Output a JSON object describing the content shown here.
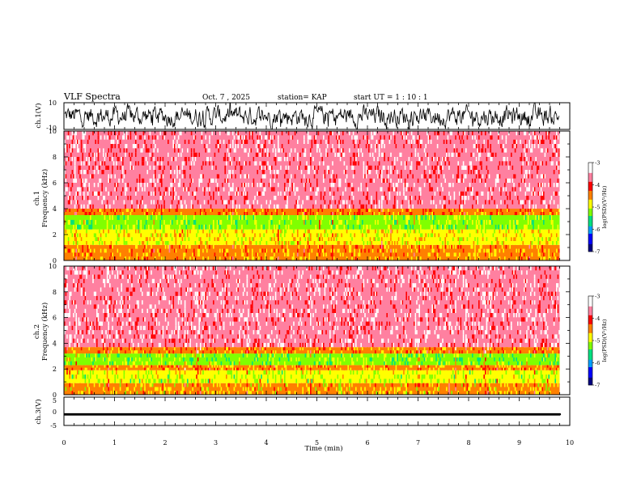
{
  "header": {
    "title": "VLF Spectra",
    "date": "Oct. 7 , 2025",
    "station": "station= KAP",
    "start": "start  UT =  1 : 10 : 1"
  },
  "colorbar": {
    "label": "log(PSD)(V²/Hz)",
    "ticks": [
      "-3",
      "-4",
      "-5",
      "-6",
      "-7"
    ],
    "range": [
      -7,
      -3
    ],
    "colors": [
      "#000080",
      "#0000ff",
      "#00a0ff",
      "#00e080",
      "#80ff00",
      "#ffff00",
      "#ff8000",
      "#ff0000",
      "#ff80a0",
      "#ffffff"
    ]
  },
  "chart_data": [
    {
      "type": "line",
      "name": "ch.1 waveform",
      "ylabel": "ch.1(V)",
      "ylim": [
        -10,
        10
      ],
      "y_ticks": [
        "10",
        "-10"
      ],
      "xlim": [
        0,
        10
      ],
      "trace_end_min": 9.8,
      "description_values": {
        "baseline": 0,
        "noise_amplitude": 7
      }
    },
    {
      "type": "heatmap",
      "name": "ch.1 spectrogram",
      "ylabel": "ch.1 Frequency (kHz)",
      "ylim": [
        0,
        10
      ],
      "y_ticks": [
        "10",
        "8",
        "6",
        "4",
        "2",
        "0"
      ],
      "xlim": [
        0,
        10
      ],
      "bands": [
        {
          "from_khz": 0,
          "to_khz": 1.2,
          "log_psd": -4.5
        },
        {
          "from_khz": 1.2,
          "to_khz": 2.4,
          "log_psd": -4.8
        },
        {
          "from_khz": 2.4,
          "to_khz": 3.5,
          "log_psd": -5.1
        },
        {
          "from_khz": 3.5,
          "to_khz": 4.0,
          "log_psd": -4.3
        },
        {
          "from_khz": 4.0,
          "to_khz": 10,
          "log_psd": -3.6
        }
      ]
    },
    {
      "type": "heatmap",
      "name": "ch.2 spectrogram",
      "ylabel": "ch.2 Frequency (kHz)",
      "ylim": [
        0,
        10
      ],
      "y_ticks": [
        "10",
        "8",
        "6",
        "4",
        "2",
        "0"
      ],
      "xlim": [
        0,
        10
      ],
      "bands": [
        {
          "from_khz": 0,
          "to_khz": 0.9,
          "log_psd": -4.6
        },
        {
          "from_khz": 0.9,
          "to_khz": 1.9,
          "log_psd": -5.0
        },
        {
          "from_khz": 1.9,
          "to_khz": 2.3,
          "log_psd": -4.5
        },
        {
          "from_khz": 2.3,
          "to_khz": 3.2,
          "log_psd": -5.2
        },
        {
          "from_khz": 3.2,
          "to_khz": 3.7,
          "log_psd": -4.4
        },
        {
          "from_khz": 3.7,
          "to_khz": 10,
          "log_psd": -3.6
        }
      ]
    },
    {
      "type": "line",
      "name": "ch.3 waveform",
      "ylabel": "ch.3(V)",
      "ylim": [
        -5,
        5
      ],
      "y_ticks": [
        "5",
        "0",
        "-5"
      ],
      "xlim": [
        0,
        10
      ],
      "trace_end_min": 9.8,
      "description_values": {
        "baseline": -1.1,
        "noise_amplitude": 0.3
      }
    }
  ],
  "xaxis": {
    "label": "Time  (min)",
    "ticks": [
      "0",
      "1",
      "2",
      "3",
      "4",
      "5",
      "6",
      "7",
      "8",
      "9",
      "10"
    ]
  }
}
